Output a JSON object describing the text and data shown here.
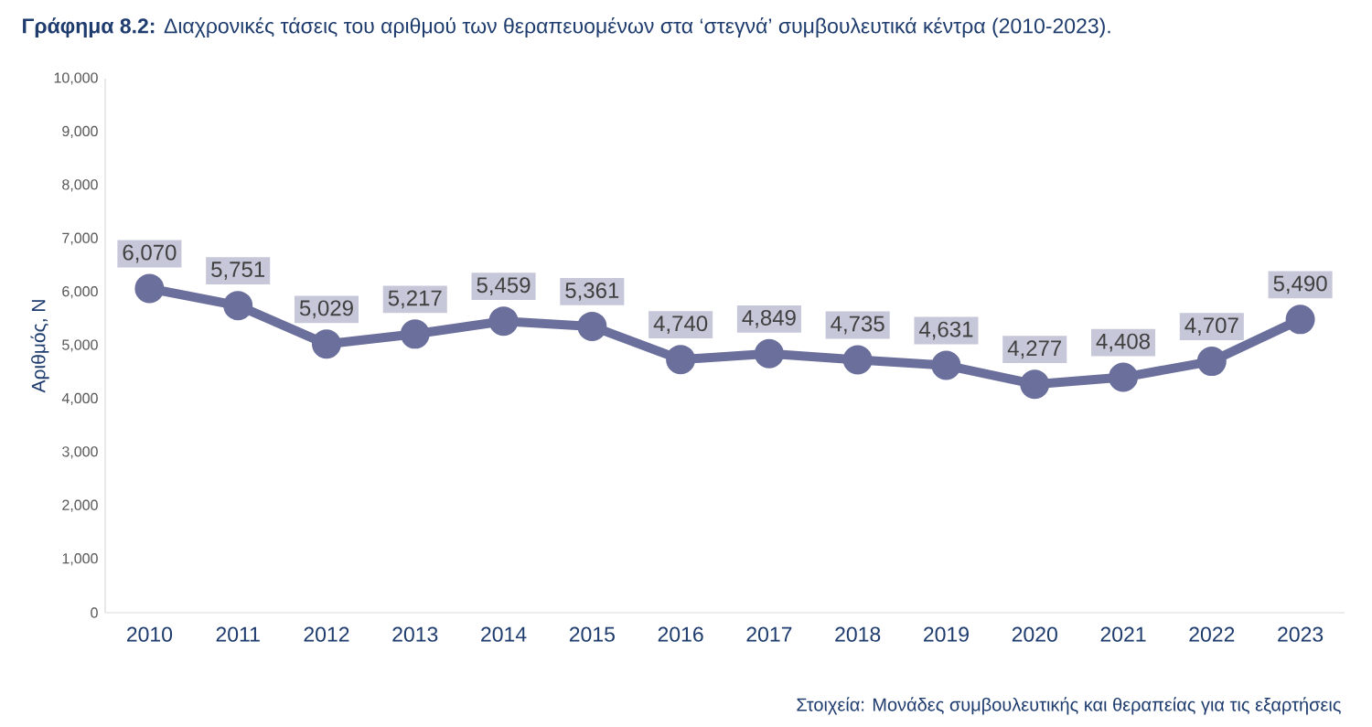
{
  "chart_data": {
    "type": "line",
    "title": "**Γράφημα 8.2:** Διαχρονικές τάσεις του αριθμού των θεραπευομένων στα ‘στεγνά’ συμβουλευτικά κέντρα (2010-2023).",
    "ylabel": "Αριθμός, Ν",
    "categories": [
      "2010",
      "2011",
      "2012",
      "2013",
      "2014",
      "2015",
      "2016",
      "2017",
      "2018",
      "2019",
      "2020",
      "2021",
      "2022",
      "2023"
    ],
    "values": [
      6070,
      5751,
      5029,
      5217,
      5459,
      5361,
      4740,
      4849,
      4735,
      4631,
      4277,
      4408,
      4707,
      5490
    ],
    "value_labels": [
      "6,070",
      "5,751",
      "5,029",
      "5,217",
      "5,459",
      "5,361",
      "4,740",
      "4,849",
      "4,735",
      "4,631",
      "4,277",
      "4,408",
      "4,707",
      "5,490"
    ],
    "color": "#6b6f9b",
    "marker": "circle",
    "line_style": "solid",
    "ylim": [
      0,
      10000
    ],
    "yticks": [
      0,
      {
        "value": 1000,
        "label": "1,000"
      },
      {
        "value": 2000,
        "label": "2,000"
      },
      {
        "value": 3000,
        "label": "3,000"
      },
      {
        "value": 4000,
        "label": "4,000"
      },
      {
        "value": 5000,
        "label": "5,000"
      },
      {
        "value": 6000,
        "label": "6,000"
      },
      {
        "value": 7000,
        "label": "7,000"
      },
      {
        "value": 8000,
        "label": "8,000"
      },
      {
        "value": 9000,
        "label": "9,000"
      },
      {
        "value": 10000,
        "label": "10,000"
      }
    ],
    "annotations": [
      "Στοιχεία: Μονάδες συμβουλευτικής και θεραπείας για τις εξαρτήσεις"
    ]
  }
}
